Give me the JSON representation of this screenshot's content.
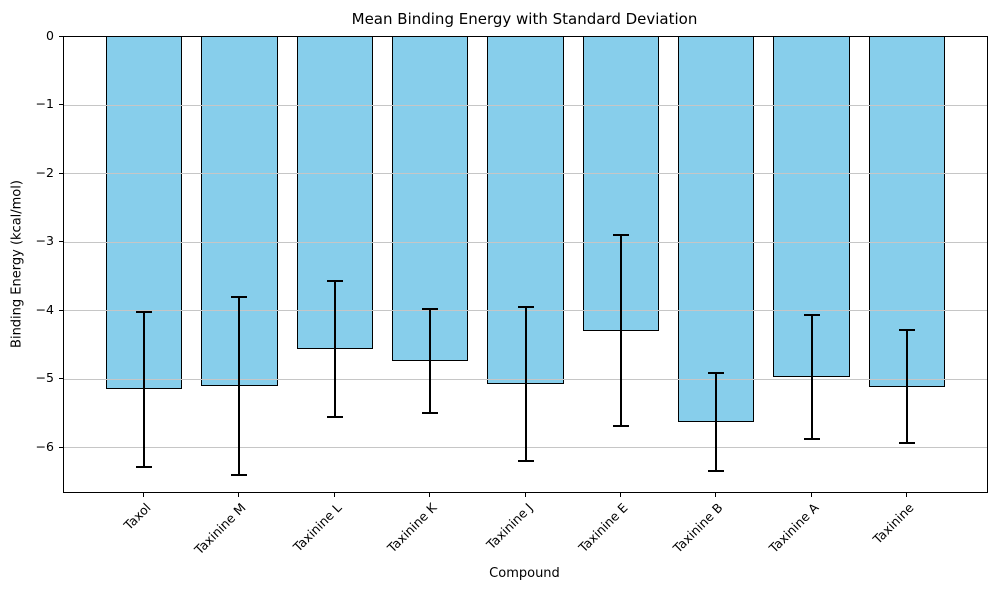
{
  "chart_data": {
    "type": "bar",
    "title": "Mean Binding Energy with Standard Deviation",
    "xlabel": "Compound",
    "ylabel": "Binding Energy (kcal/mol)",
    "categories": [
      "Taxol",
      "Taxinine M",
      "Taxinine L",
      "Taxinine K",
      "Taxinine J",
      "Taxinine E",
      "Taxinine B",
      "Taxinine A",
      "Taxinine"
    ],
    "values": [
      -5.15,
      -5.1,
      -4.56,
      -4.73,
      -5.07,
      -4.29,
      -5.63,
      -4.97,
      -5.11
    ],
    "errors": [
      1.13,
      1.3,
      1.0,
      0.76,
      1.12,
      1.4,
      0.72,
      0.91,
      0.83
    ],
    "ylim": [
      -6.65,
      0
    ],
    "yticks": [
      0,
      -1,
      -2,
      -3,
      -4,
      -5,
      -6
    ],
    "grid": true,
    "legend": "none",
    "bar_color": "#87CEEB",
    "bar_edge_color": "#000000",
    "error_color": "#000000",
    "grid_color": "#c6c6c6",
    "axis_color": "#000000"
  }
}
